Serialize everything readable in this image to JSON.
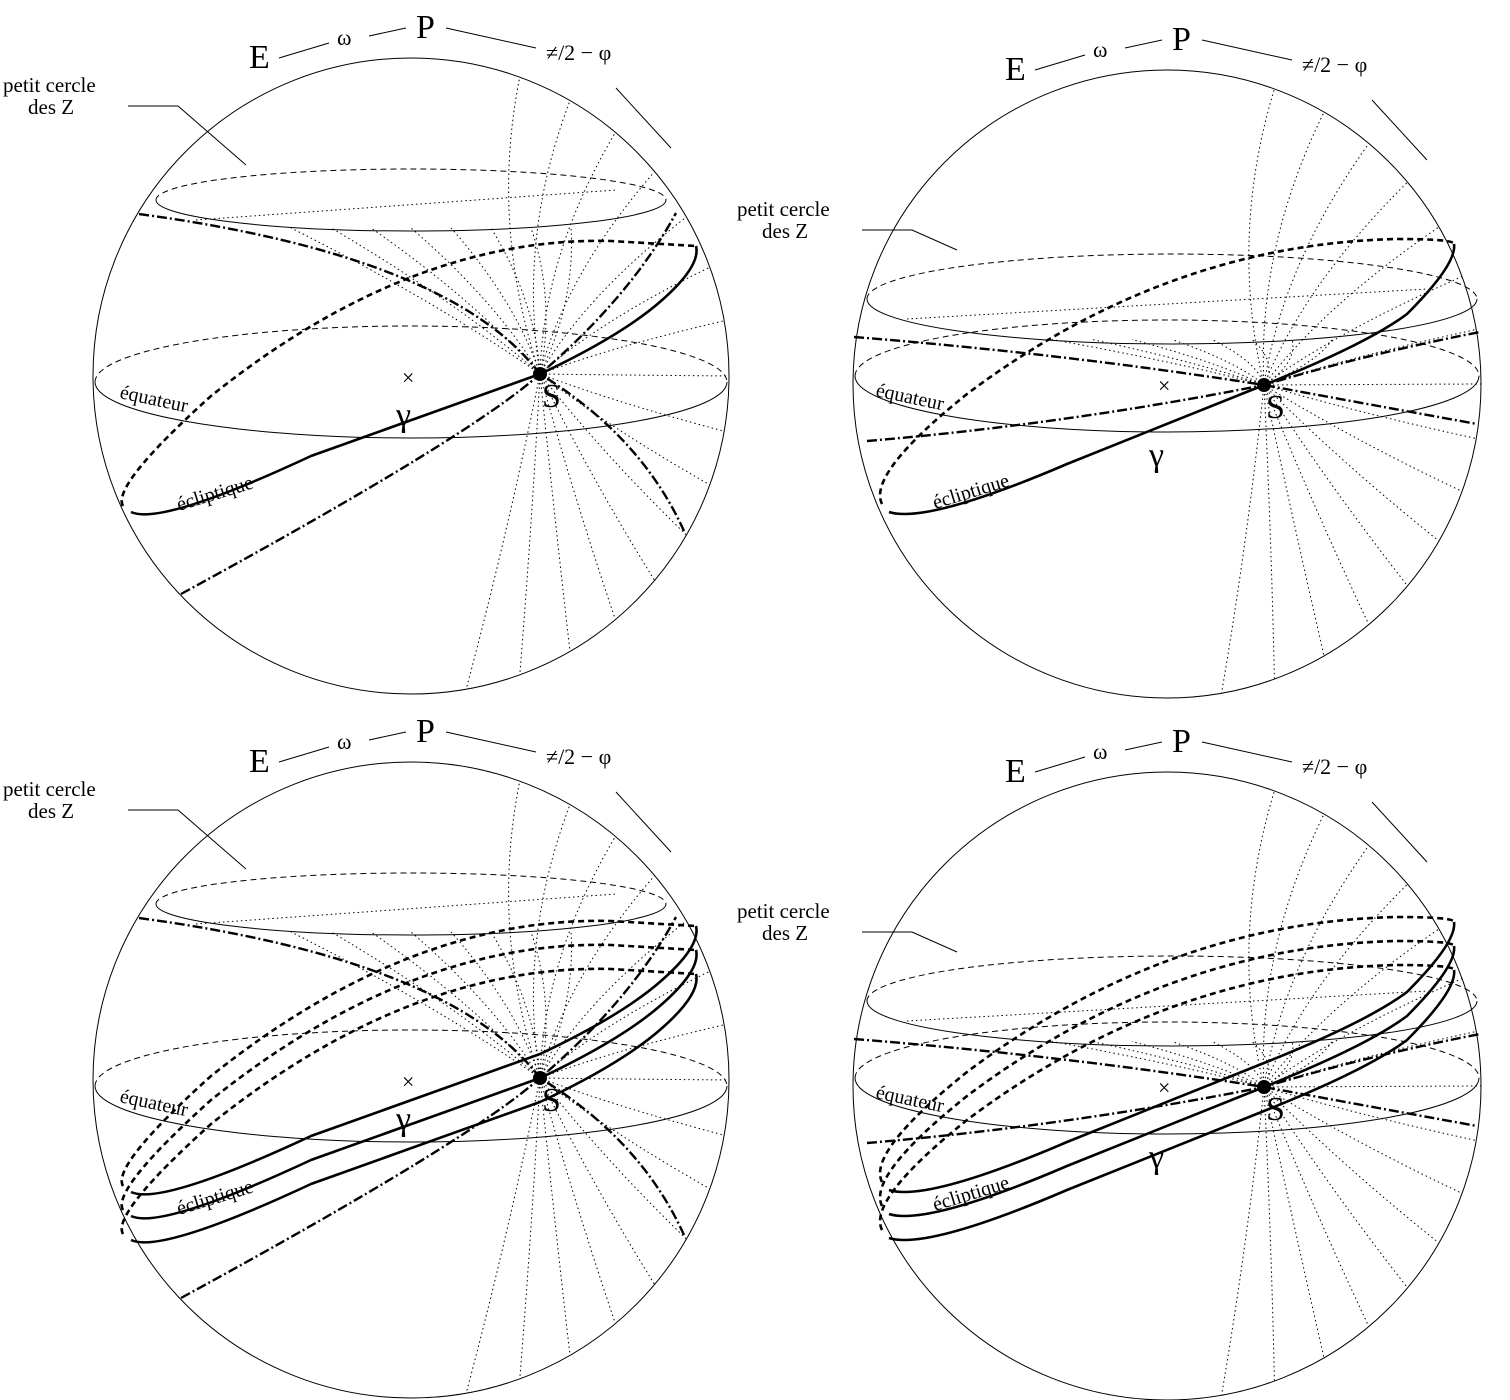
{
  "labels": {
    "E": "E",
    "omega": "ω",
    "P": "P",
    "colatitude": "≠/2 − φ",
    "small_circle": [
      "petit cercle",
      "des Z"
    ],
    "equator": "équateur",
    "ecliptic": "écliptique",
    "gamma": "γ",
    "S": "S",
    "center_mark": "×"
  },
  "panels": [
    {
      "id": "top-left",
      "ecliptic_count": 1
    },
    {
      "id": "top-right",
      "ecliptic_count": 1
    },
    {
      "id": "bottom-left",
      "ecliptic_count": 3
    },
    {
      "id": "bottom-right",
      "ecliptic_count": 3
    }
  ]
}
